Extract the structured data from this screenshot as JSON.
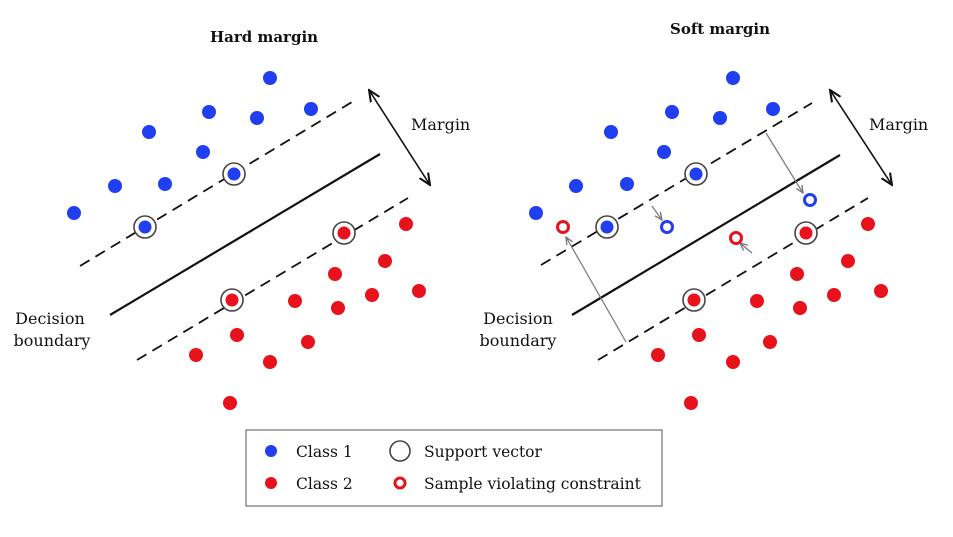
{
  "panels": {
    "left": {
      "title": "Hard margin",
      "margin_label": "Margin",
      "boundary_label_line1": "Decision",
      "boundary_label_line2": "boundary"
    },
    "right": {
      "title": "Soft margin",
      "margin_label": "Margin",
      "boundary_label_line1": "Decision",
      "boundary_label_line2": "boundary"
    }
  },
  "legend": {
    "class1": "Class 1",
    "class2": "Class 2",
    "support_vector": "Support vector",
    "violating": "Sample violating constraint"
  },
  "colors": {
    "class1": "#1f3ff0",
    "class2": "#e8121c",
    "line": "#111111"
  }
}
